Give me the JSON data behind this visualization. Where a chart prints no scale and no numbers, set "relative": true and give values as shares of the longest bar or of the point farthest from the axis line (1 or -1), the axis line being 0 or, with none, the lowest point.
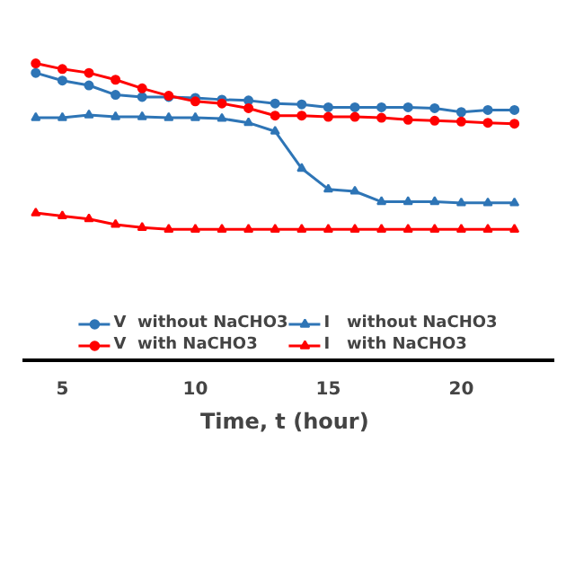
{
  "chart_data": {
    "type": "line",
    "relative": true,
    "xlabel": "Time, t  (hour)",
    "x": [
      4,
      5,
      6,
      7,
      8,
      9,
      10,
      11,
      12,
      13,
      14,
      15,
      16,
      17,
      18,
      19,
      20,
      21,
      22
    ],
    "xlim": [
      3.5,
      23.5
    ],
    "xticks": [
      5,
      10,
      15,
      20
    ],
    "grid": false,
    "legend": "bottom",
    "line_style": "solid",
    "series": [
      {
        "name": "V  without NaCHO3",
        "color": "#2e75b6",
        "marker": "circle",
        "values": [
          0.968,
          0.942,
          0.926,
          0.894,
          0.887,
          0.887,
          0.884,
          0.878,
          0.875,
          0.865,
          0.862,
          0.852,
          0.852,
          0.852,
          0.852,
          0.849,
          0.836,
          0.843,
          0.843
        ]
      },
      {
        "name": "V  with NaCHO3",
        "color": "#ff0000",
        "marker": "circle",
        "values": [
          1.0,
          0.981,
          0.968,
          0.945,
          0.916,
          0.891,
          0.872,
          0.865,
          0.849,
          0.824,
          0.824,
          0.82,
          0.82,
          0.817,
          0.81,
          0.807,
          0.804,
          0.8,
          0.797
        ]
      },
      {
        "name": "I   without NaCHO3",
        "color": "#2e75b6",
        "marker": "triangle",
        "values": [
          0.817,
          0.817,
          0.826,
          0.82,
          0.82,
          0.817,
          0.817,
          0.814,
          0.8,
          0.771,
          0.646,
          0.576,
          0.569,
          0.534,
          0.534,
          0.534,
          0.53,
          0.53,
          0.53
        ]
      },
      {
        "name": "I   with NaCHO3",
        "color": "#ff0000",
        "marker": "triangle",
        "values": [
          0.496,
          0.486,
          0.476,
          0.457,
          0.447,
          0.441,
          0.441,
          0.441,
          0.441,
          0.441,
          0.441,
          0.441,
          0.441,
          0.441,
          0.441,
          0.441,
          0.441,
          0.441,
          0.441
        ]
      }
    ]
  }
}
